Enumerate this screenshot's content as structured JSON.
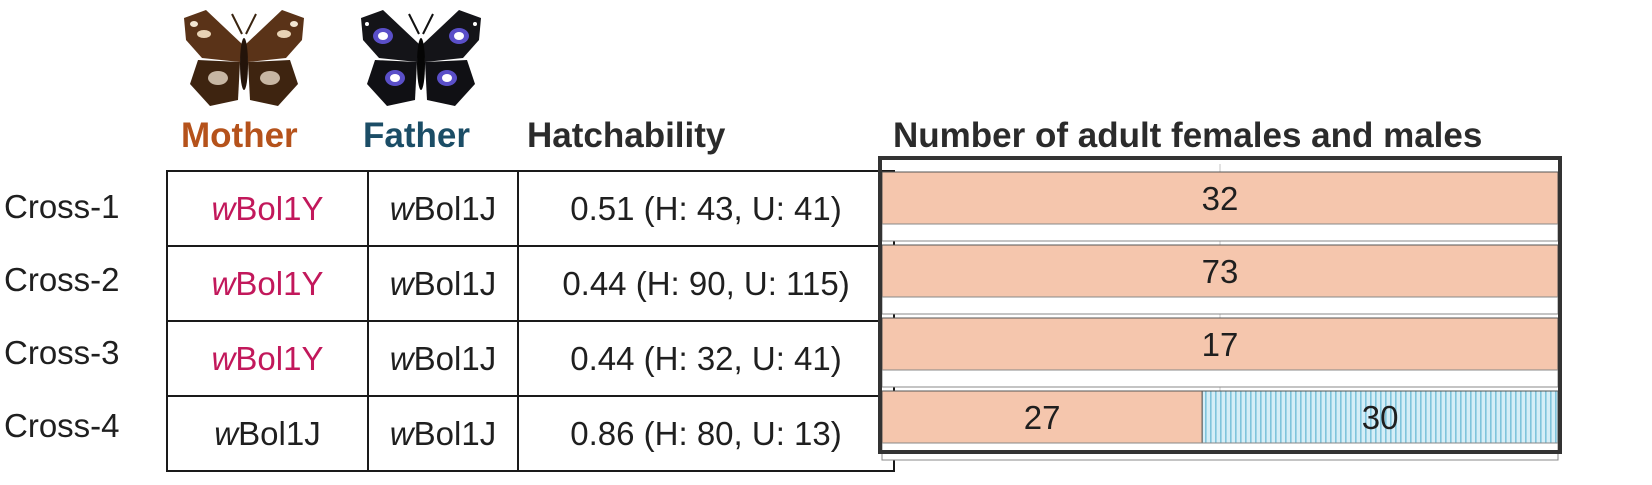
{
  "headers": {
    "mother": "Mother",
    "father": "Father",
    "hatchability": "Hatchability",
    "chart_title": "Number of adult females and males"
  },
  "colors": {
    "mother": "#b5521b",
    "father": "#1b4d66",
    "strain_highlight": "#c2185b",
    "female_bar": "#f5c6ad",
    "male_bar": "#d5eef7",
    "male_stripe": "#7fc4dc"
  },
  "icons": {
    "mother": "brown-butterfly-icon",
    "father": "blue-butterfly-icon"
  },
  "rows": [
    {
      "label": "Cross-1",
      "mother_prefix": "w",
      "mother_rest": "Bol1Y",
      "mother_highlight": true,
      "father_prefix": "w",
      "father_rest": "Bol1J",
      "hatchability": "0.51 (H: 43, U: 41)"
    },
    {
      "label": "Cross-2",
      "mother_prefix": "w",
      "mother_rest": "Bol1Y",
      "mother_highlight": true,
      "father_prefix": "w",
      "father_rest": "Bol1J",
      "hatchability": "0.44 (H: 90, U: 115)"
    },
    {
      "label": "Cross-3",
      "mother_prefix": "w",
      "mother_rest": "Bol1Y",
      "mother_highlight": true,
      "father_prefix": "w",
      "father_rest": "Bol1J",
      "hatchability": "0.44 (H: 32, U: 41)"
    },
    {
      "label": "Cross-4",
      "mother_prefix": "w",
      "mother_rest": "Bol1J",
      "mother_highlight": false,
      "father_prefix": "w",
      "father_rest": "Bol1J",
      "hatchability": "0.86 (H: 80, U: 13)"
    }
  ],
  "chart_data": {
    "type": "bar",
    "orientation": "horizontal",
    "stacked": true,
    "normalized": true,
    "title": "Number of adult females and males",
    "categories": [
      "Cross-1",
      "Cross-2",
      "Cross-3",
      "Cross-4"
    ],
    "series": [
      {
        "values": [
          32,
          73,
          17,
          27
        ],
        "labels": [
          "32",
          "73",
          "17",
          "27"
        ]
      },
      {
        "values": [
          0,
          0,
          0,
          30
        ],
        "labels": [
          "",
          "",
          "",
          "30"
        ]
      }
    ],
    "gridline_fraction": 0.5
  }
}
